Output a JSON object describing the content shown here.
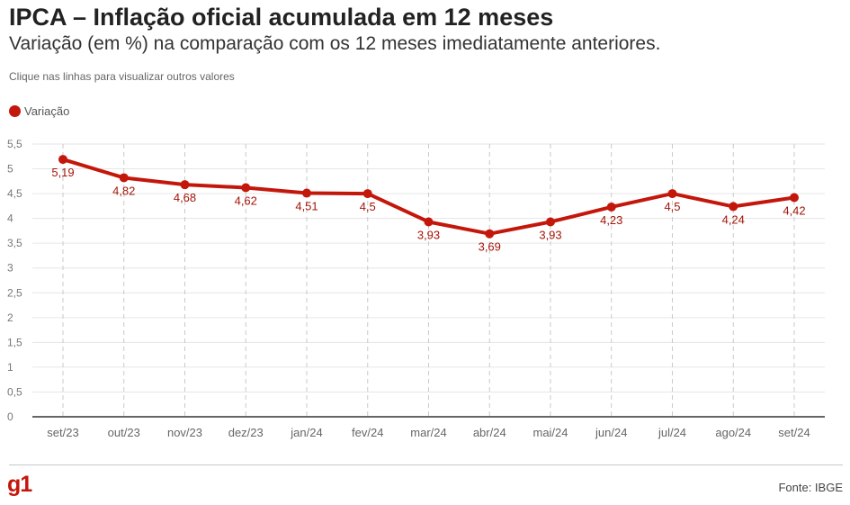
{
  "header": {
    "title": "IPCA – Inflação oficial acumulada em 12 meses",
    "subtitle": "Variação (em %) na comparação com os 12 meses imediatamente anteriores.",
    "hint": "Clique nas linhas para visualizar outros valores"
  },
  "legend": {
    "label": "Variação"
  },
  "colors": {
    "series": "#c4170c",
    "brand": "#c4170c"
  },
  "footer": {
    "logo": "g1",
    "source": "Fonte: IBGE"
  },
  "chart_data": {
    "type": "line",
    "categories": [
      "set/23",
      "out/23",
      "nov/23",
      "dez/23",
      "jan/24",
      "fev/24",
      "mar/24",
      "abr/24",
      "mai/24",
      "jun/24",
      "jul/24",
      "ago/24",
      "set/24"
    ],
    "series": [
      {
        "name": "Variação",
        "values": [
          5.19,
          4.82,
          4.68,
          4.62,
          4.51,
          4.5,
          3.93,
          3.69,
          3.93,
          4.23,
          4.5,
          4.24,
          4.42
        ],
        "labels": [
          "5,19",
          "4,82",
          "4,68",
          "4,62",
          "4,51",
          "4,5",
          "3,93",
          "3,69",
          "3,93",
          "4,23",
          "4,5",
          "4,24",
          "4,42"
        ]
      }
    ],
    "yticks": [
      "0",
      "0,5",
      "1",
      "1,5",
      "2",
      "2,5",
      "3",
      "3,5",
      "4",
      "4,5",
      "5",
      "5,5"
    ],
    "ylim": [
      0,
      5.5
    ],
    "grid": true
  }
}
